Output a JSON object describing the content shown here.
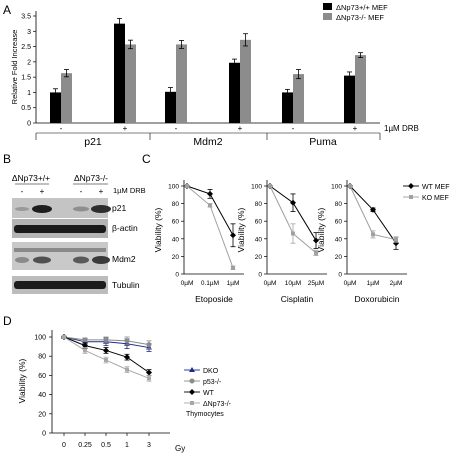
{
  "figure": {
    "panel_labels": [
      "A",
      "B",
      "C",
      "D"
    ]
  },
  "chart_data": [
    {
      "panel": "A",
      "type": "bar",
      "ylabel": "Relative Fold Increase",
      "ylim": [
        0,
        3.5
      ],
      "yticks": [
        "0",
        "0.5",
        "1",
        "1.5",
        "2",
        "2.5",
        "3",
        "3.5"
      ],
      "groups": [
        "p21",
        "Mdm2",
        "Puma"
      ],
      "treatment_labels": [
        "-",
        "+"
      ],
      "treatment_note": "1µM DRB",
      "legend": [
        {
          "label": "ΔNp73+/+ MEF",
          "color": "#000000"
        },
        {
          "label": "ΔNp73-/- MEF",
          "color": "#8c8c8c"
        }
      ],
      "series": [
        {
          "name": "ΔNp73+/+ MEF",
          "values": [
            1.0,
            3.25,
            1.02,
            1.97,
            1.0,
            1.55
          ],
          "errors": [
            0.12,
            0.17,
            0.14,
            0.12,
            0.1,
            0.12
          ]
        },
        {
          "name": "ΔNp73-/- MEF",
          "values": [
            1.63,
            2.57,
            2.57,
            2.72,
            1.6,
            2.22
          ],
          "errors": [
            0.12,
            0.14,
            0.13,
            0.2,
            0.15,
            0.08
          ]
        }
      ]
    },
    {
      "panel": "B",
      "type": "table",
      "column_headers": [
        "ΔNp73+/+",
        "ΔNp73-/-"
      ],
      "treatment_labels": [
        "-",
        "+",
        "-",
        "+"
      ],
      "treatment_note": "1µM DRB",
      "blots": [
        "p21",
        "β-actin",
        "Mdm2",
        "Tubulin"
      ]
    },
    {
      "panel": "C",
      "type": "line",
      "ylabel": "Viability (%)",
      "ylim": [
        0,
        100
      ],
      "yticks": [
        "0",
        "20",
        "40",
        "60",
        "80",
        "100"
      ],
      "legend": [
        {
          "label": "WT MEF",
          "color": "#000000"
        },
        {
          "label": "KO MEF",
          "color": "#a0a0a0"
        }
      ],
      "subplots": [
        {
          "xlabel": "Etoposide",
          "x": [
            "0µM",
            "0.1µM",
            "1µM"
          ],
          "series": [
            {
              "name": "WT MEF",
              "values": [
                100,
                91,
                44
              ],
              "errors": [
                1,
                5,
                13
              ]
            },
            {
              "name": "KO MEF",
              "values": [
                100,
                78,
                7
              ],
              "errors": [
                1,
                2,
                2
              ]
            }
          ]
        },
        {
          "xlabel": "Cisplatin",
          "x": [
            "0µM",
            "10µM",
            "25µM"
          ],
          "series": [
            {
              "name": "WT MEF",
              "values": [
                100,
                81,
                38
              ],
              "errors": [
                1,
                10,
                9
              ]
            },
            {
              "name": "KO MEF",
              "values": [
                100,
                46,
                24
              ],
              "errors": [
                1,
                11,
                3
              ]
            }
          ]
        },
        {
          "xlabel": "Doxorubicin",
          "x": [
            "0µM",
            "1µM",
            "2µM"
          ],
          "series": [
            {
              "name": "WT MEF",
              "values": [
                100,
                73,
                35
              ],
              "errors": [
                1,
                2,
                7
              ]
            },
            {
              "name": "KO MEF",
              "values": [
                100,
                45,
                39
              ],
              "errors": [
                1,
                4,
                3
              ]
            }
          ]
        }
      ]
    },
    {
      "panel": "D",
      "type": "line",
      "ylabel": "Viability (%)",
      "ylim": [
        0,
        100
      ],
      "yticks": [
        "0",
        "20",
        "40",
        "60",
        "80",
        "100"
      ],
      "x": [
        "0",
        "0.25",
        "0.5",
        "1",
        "3"
      ],
      "xunit": "Gy",
      "legend_title": "Thymocytes",
      "legend": [
        {
          "label": "DKO",
          "color": "#1a2b8c",
          "marker": "triangle"
        },
        {
          "label": "p53-/-",
          "color": "#8a8a8a",
          "marker": "circle"
        },
        {
          "label": "WT",
          "color": "#000000",
          "marker": "diamond"
        },
        {
          "label": "ΔNp73-/-",
          "color": "#a8a8a8",
          "marker": "square"
        }
      ],
      "series": [
        {
          "name": "DKO",
          "values": [
            100,
            95,
            95,
            93,
            89
          ],
          "errors": [
            1,
            3,
            4,
            5,
            4
          ]
        },
        {
          "name": "p53-/-",
          "values": [
            100,
            97,
            97,
            96,
            92
          ],
          "errors": [
            1,
            2,
            3,
            4,
            4
          ]
        },
        {
          "name": "WT",
          "values": [
            100,
            91,
            86,
            79,
            63
          ],
          "errors": [
            1,
            3,
            3,
            3,
            3
          ]
        },
        {
          "name": "ΔNp73-/-",
          "values": [
            100,
            86,
            76,
            66,
            57
          ],
          "errors": [
            1,
            3,
            3,
            3,
            3
          ]
        }
      ]
    }
  ]
}
